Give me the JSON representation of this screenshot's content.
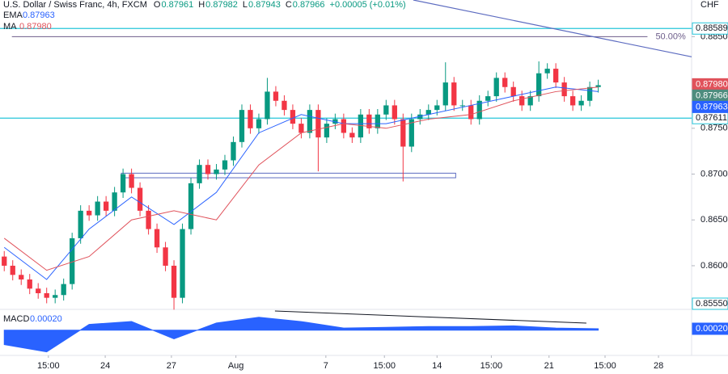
{
  "chart_data": {
    "type": "candlestick",
    "header": {
      "symbol": "U.S. Dollar / Swiss Franc, 4h, FXCM",
      "ohlc": [
        {
          "key": "O",
          "value": "0.87961"
        },
        {
          "key": "H",
          "value": "0.87982"
        },
        {
          "key": "L",
          "value": "0.87943"
        },
        {
          "key": "C",
          "value": "0.87966"
        }
      ],
      "change": "+0.00005 (+0.01%)"
    },
    "currency": "CHF",
    "up_color": "#089981",
    "down_color": "#f23645",
    "open": [
      0.861,
      0.86,
      0.859,
      0.8585,
      0.8575,
      0.857,
      0.8565,
      0.8568,
      0.858,
      0.863,
      0.866,
      0.8655,
      0.867,
      0.866,
      0.868,
      0.87,
      0.8685,
      0.866,
      0.864,
      0.862,
      0.86,
      0.8565,
      0.864,
      0.869,
      0.871,
      0.87,
      0.8705,
      0.8715,
      0.8735,
      0.877,
      0.875,
      0.876,
      0.879,
      0.878,
      0.877,
      0.8755,
      0.8745,
      0.877,
      0.874,
      0.8755,
      0.876,
      0.8745,
      0.874,
      0.8765,
      0.875,
      0.8765,
      0.8775,
      0.876,
      0.873,
      0.876,
      0.8765,
      0.877,
      0.8775,
      0.88,
      0.8775,
      0.8775,
      0.876,
      0.878,
      0.8785,
      0.8805,
      0.8795,
      0.8785,
      0.8775,
      0.8785,
      0.881,
      0.8815,
      0.88,
      0.8785,
      0.8775,
      0.878,
      0.8795
    ],
    "high": [
      0.8616,
      0.8606,
      0.8596,
      0.8591,
      0.8581,
      0.8576,
      0.8574,
      0.8586,
      0.8636,
      0.8666,
      0.8666,
      0.8676,
      0.8676,
      0.8686,
      0.8706,
      0.8706,
      0.8691,
      0.8666,
      0.8646,
      0.8626,
      0.8606,
      0.8646,
      0.8696,
      0.8716,
      0.8716,
      0.8711,
      0.8721,
      0.8741,
      0.8776,
      0.8776,
      0.8766,
      0.8805,
      0.8796,
      0.8786,
      0.8776,
      0.8761,
      0.8776,
      0.8776,
      0.8761,
      0.8766,
      0.8766,
      0.8751,
      0.8771,
      0.8771,
      0.8771,
      0.8781,
      0.8781,
      0.8766,
      0.8766,
      0.8771,
      0.8776,
      0.8781,
      0.8822,
      0.8806,
      0.8781,
      0.8781,
      0.8786,
      0.8791,
      0.8811,
      0.8811,
      0.8801,
      0.8791,
      0.8791,
      0.8823,
      0.8821,
      0.8821,
      0.8806,
      0.8791,
      0.8786,
      0.8801,
      0.8803
    ],
    "low": [
      0.8594,
      0.8584,
      0.8579,
      0.8569,
      0.8564,
      0.8559,
      0.8559,
      0.8562,
      0.8574,
      0.8624,
      0.8649,
      0.8649,
      0.8654,
      0.8654,
      0.8674,
      0.8679,
      0.8654,
      0.8634,
      0.8614,
      0.8594,
      0.8552,
      0.8559,
      0.8634,
      0.8684,
      0.8694,
      0.8694,
      0.8699,
      0.8709,
      0.8729,
      0.8744,
      0.8744,
      0.8754,
      0.8774,
      0.8764,
      0.8749,
      0.8739,
      0.8739,
      0.8703,
      0.8734,
      0.8749,
      0.8739,
      0.8734,
      0.8734,
      0.8744,
      0.8744,
      0.8759,
      0.8754,
      0.8692,
      0.8724,
      0.8754,
      0.8759,
      0.8764,
      0.8769,
      0.8769,
      0.8769,
      0.8754,
      0.8754,
      0.8774,
      0.8779,
      0.8789,
      0.8779,
      0.8769,
      0.8769,
      0.8779,
      0.8804,
      0.8794,
      0.8779,
      0.8769,
      0.8769,
      0.8774,
      0.8789
    ],
    "close": [
      0.86,
      0.859,
      0.8585,
      0.8575,
      0.857,
      0.8565,
      0.8568,
      0.858,
      0.863,
      0.866,
      0.8655,
      0.867,
      0.866,
      0.868,
      0.87,
      0.8685,
      0.866,
      0.864,
      0.862,
      0.86,
      0.8565,
      0.864,
      0.869,
      0.871,
      0.87,
      0.8705,
      0.8715,
      0.8735,
      0.877,
      0.875,
      0.876,
      0.879,
      0.878,
      0.877,
      0.8755,
      0.8745,
      0.877,
      0.874,
      0.8755,
      0.876,
      0.8745,
      0.874,
      0.8765,
      0.875,
      0.8765,
      0.8775,
      0.876,
      0.873,
      0.876,
      0.8765,
      0.877,
      0.8775,
      0.88,
      0.8775,
      0.8775,
      0.876,
      0.878,
      0.8785,
      0.8805,
      0.8795,
      0.8785,
      0.8775,
      0.8785,
      0.881,
      0.8815,
      0.88,
      0.8785,
      0.8775,
      0.878,
      0.8795,
      0.8797
    ],
    "xlim": [
      -0.5,
      81
    ],
    "xticks": [
      {
        "value": 5.2,
        "label": "15:00"
      },
      {
        "value": 11.9,
        "label": "24"
      },
      {
        "value": 19.7,
        "label": "27"
      },
      {
        "value": 27.3,
        "label": "Aug"
      },
      {
        "value": 37.9,
        "label": "7"
      },
      {
        "value": 44.8,
        "label": "15:00"
      },
      {
        "value": 51.0,
        "label": "14"
      },
      {
        "value": 57.4,
        "label": "15:00"
      },
      {
        "value": 64.2,
        "label": "21"
      },
      {
        "value": 70.8,
        "label": "15:00"
      },
      {
        "value": 77.1,
        "label": "28"
      }
    ],
    "ylim": [
      0.8555,
      0.889
    ],
    "yticks": [
      {
        "value": 0.885,
        "label": "0.88500"
      },
      {
        "value": 0.875,
        "label": "0.87500"
      },
      {
        "value": 0.87,
        "label": "0.87000"
      },
      {
        "value": 0.865,
        "label": "0.86500"
      },
      {
        "value": 0.86,
        "label": "0.86000"
      }
    ],
    "overlays": [
      {
        "name": "EMA",
        "value_label": "0.87963",
        "color": "#2962ff",
        "x": [
          0,
          5,
          10,
          15,
          20,
          25,
          30,
          35,
          40,
          45,
          50,
          55,
          60,
          65,
          70
        ],
        "values": [
          0.862,
          0.8585,
          0.864,
          0.8675,
          0.8645,
          0.868,
          0.8745,
          0.8765,
          0.8755,
          0.8755,
          0.8765,
          0.8775,
          0.8785,
          0.8795,
          0.879
        ]
      },
      {
        "name": "MA",
        "value_label": "0.87980",
        "color": "#e0525b",
        "x": [
          0,
          5,
          10,
          15,
          20,
          25,
          30,
          35,
          40,
          45,
          50,
          55,
          60,
          65,
          70
        ],
        "values": [
          0.863,
          0.8595,
          0.861,
          0.865,
          0.866,
          0.865,
          0.871,
          0.8745,
          0.8755,
          0.875,
          0.876,
          0.8765,
          0.878,
          0.879,
          0.8795
        ]
      }
    ],
    "levels": [
      {
        "value": 0.88589,
        "label": "0.88589"
      },
      {
        "value": 0.87611,
        "label": "0.87611"
      }
    ],
    "level_color": "#26c6da",
    "fib": {
      "value": 0.885,
      "label": "50.00%",
      "x": [
        0.9,
        75.8
      ],
      "color": "#6d5d8a"
    },
    "price_labels": [
      {
        "value": 0.8798,
        "label": "0.87980",
        "color": "#e0525b"
      },
      {
        "value": 0.87966,
        "label": "0.87966",
        "color": "#4e8c7e"
      },
      {
        "value": 0.87963,
        "label": "0.87963",
        "color": "#2962ff"
      },
      {
        "value": 0.8555,
        "label": "0.85550",
        "color": "#ffffff"
      }
    ],
    "trendline": {
      "x": [
        48.2,
        81
      ],
      "y": [
        0.889,
        0.8828
      ],
      "color": "#5c6bc0"
    },
    "zone": {
      "x": [
        13.8,
        53.2
      ],
      "y": [
        0.8696,
        0.8701
      ],
      "color": "#5c6bc0"
    },
    "macd": {
      "name": "MACD",
      "value_label": "0.00020",
      "color": "#2962ff",
      "ylim": [
        -0.0035,
        0.003
      ],
      "x": [
        0,
        5,
        10,
        15,
        20,
        25,
        30,
        35,
        40,
        45,
        50,
        55,
        60,
        65,
        70
      ],
      "values": [
        -0.002,
        -0.003,
        0.0008,
        0.0012,
        -0.0012,
        0.001,
        0.0018,
        0.0012,
        0.0003,
        0.0004,
        0.0005,
        0.0005,
        0.0006,
        0.0003,
        0.0002
      ],
      "label_value": 0.0002,
      "trendline": {
        "x": [
          31.9,
          68.6
        ],
        "y": [
          0.00266,
          0.00098
        ]
      }
    }
  }
}
